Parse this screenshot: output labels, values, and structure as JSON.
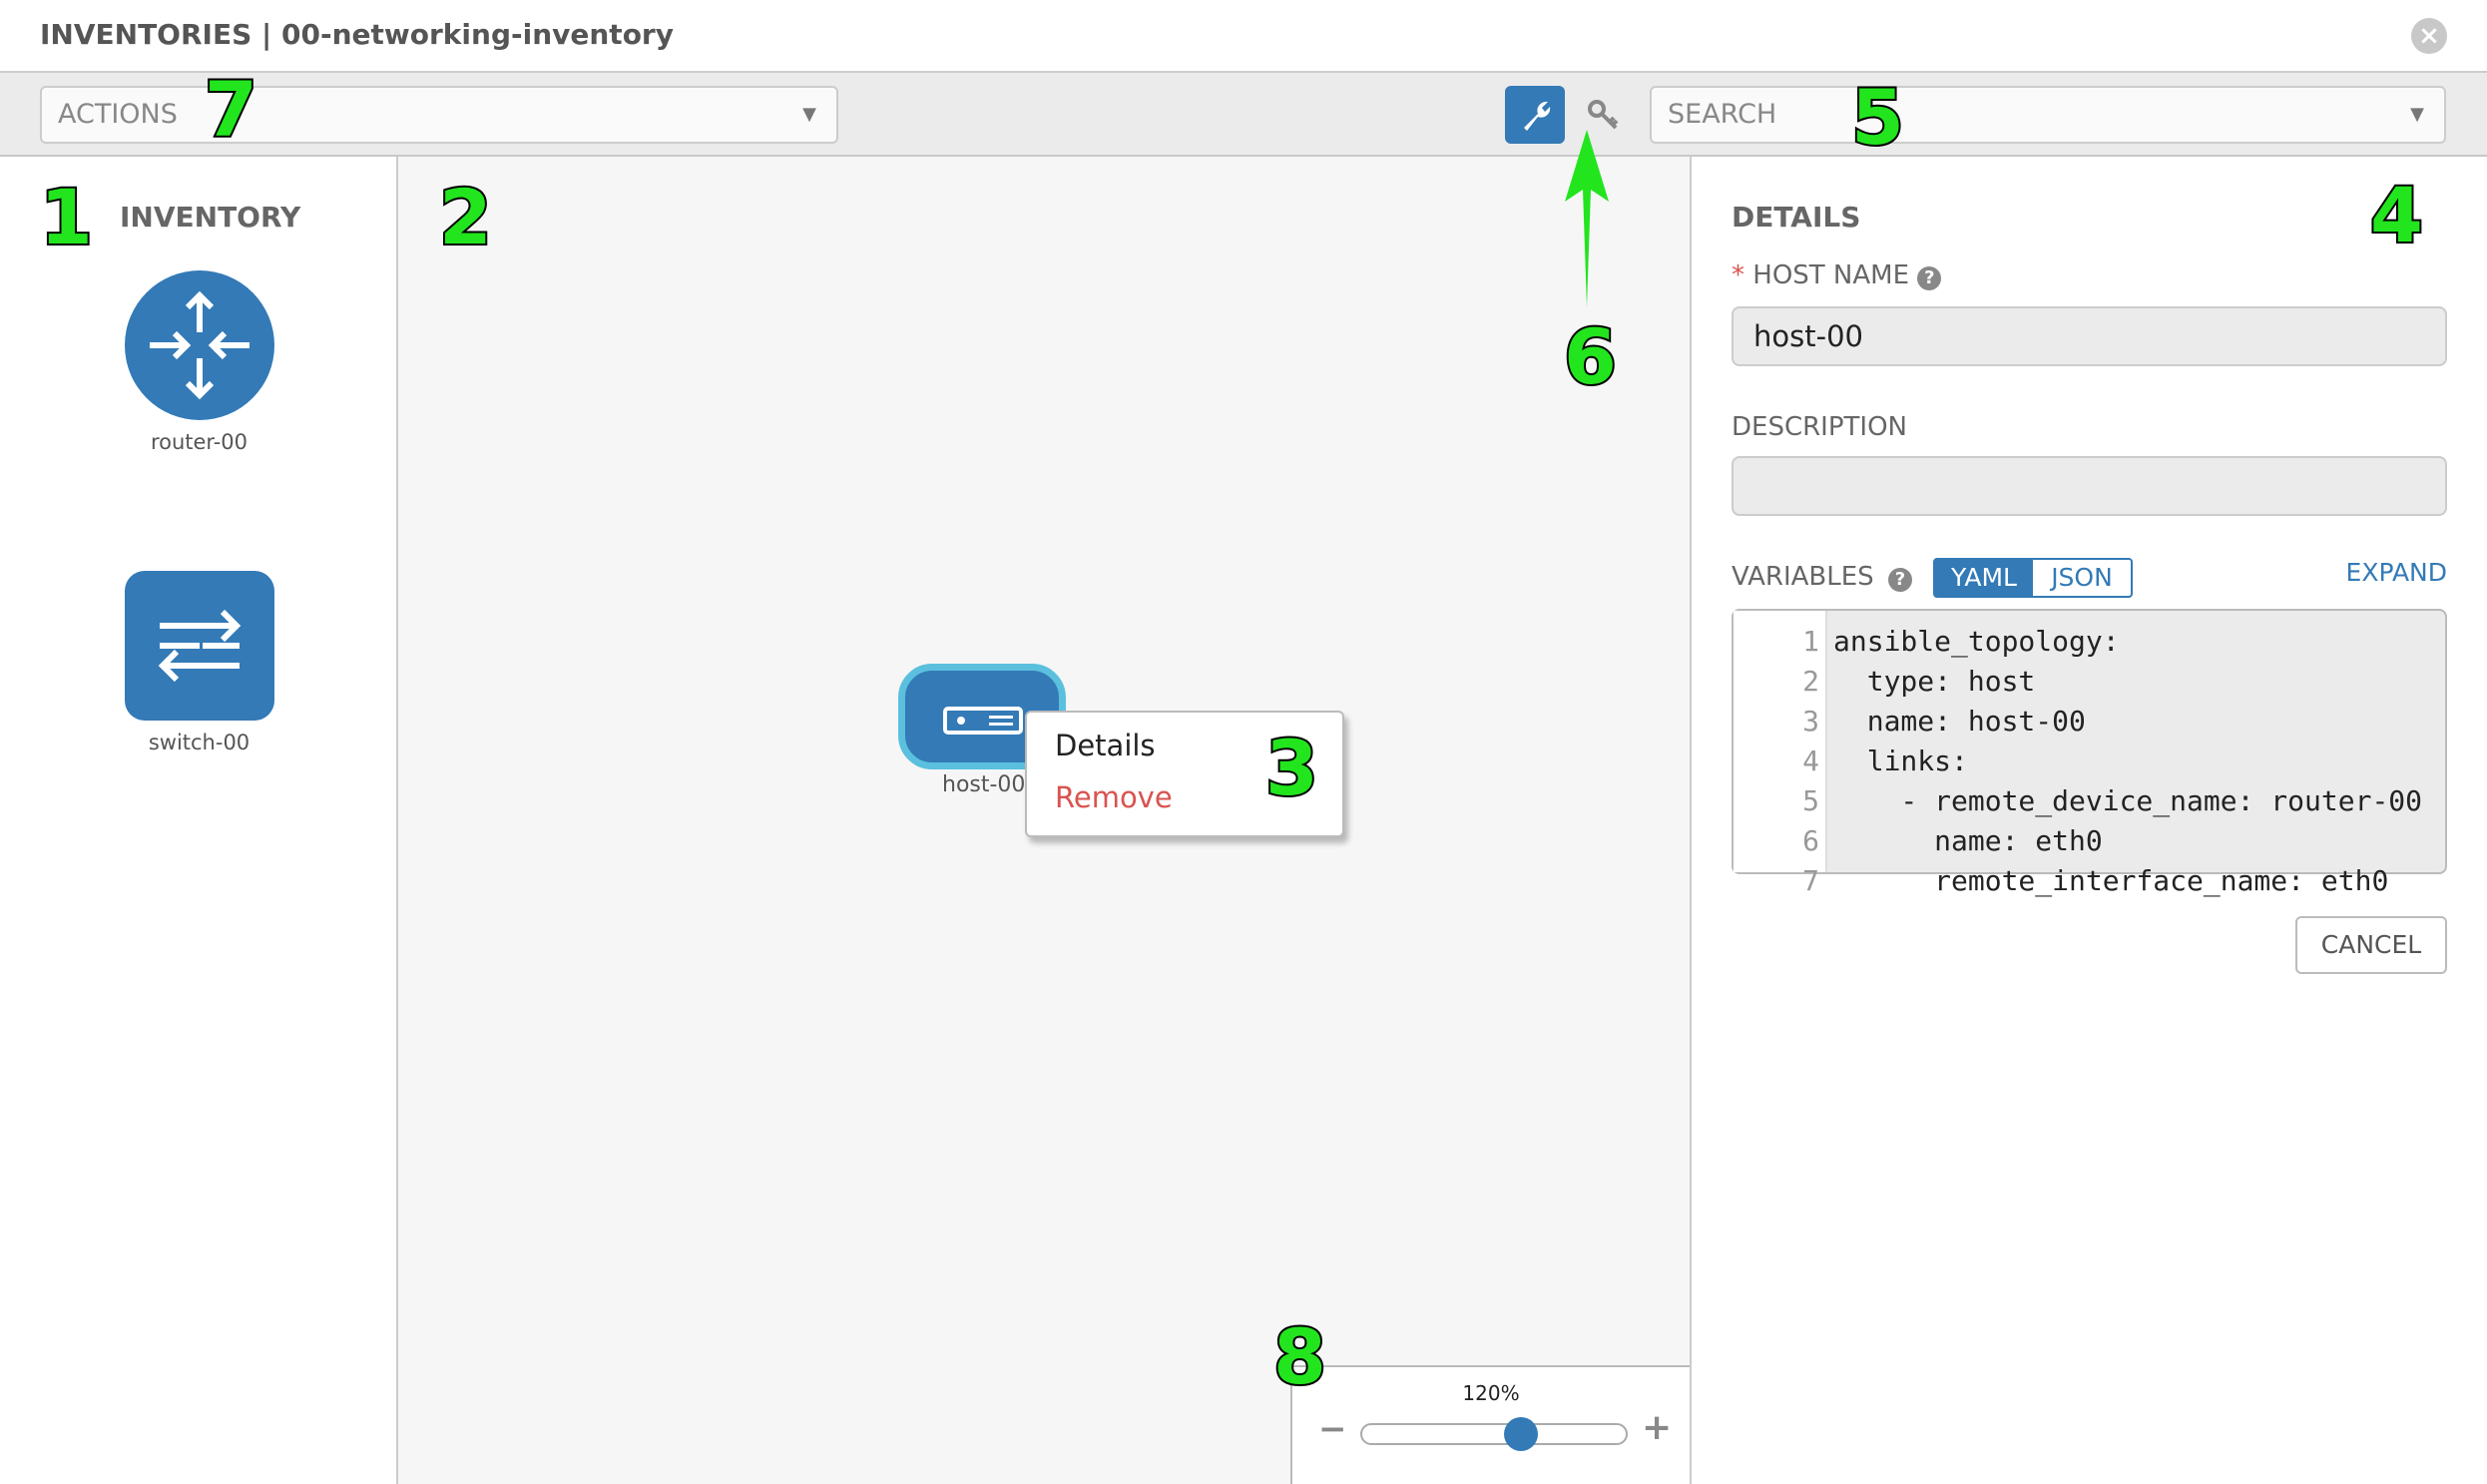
{
  "title": "INVENTORIES | 00-networking-inventory",
  "toolbar": {
    "actions_placeholder": "ACTIONS",
    "search_placeholder": "SEARCH",
    "active_tool": "wrench-icon",
    "secondary_tool": "key-icon"
  },
  "inventory": {
    "heading": "INVENTORY",
    "items": [
      {
        "label": "router-00",
        "icon": "router-icon"
      },
      {
        "label": "switch-00",
        "icon": "switch-icon"
      }
    ]
  },
  "canvas": {
    "node": {
      "label": "host-00",
      "icon": "server-icon"
    },
    "context_menu": {
      "details": "Details",
      "remove": "Remove"
    },
    "zoom": {
      "label": "120%",
      "value_percent": 120,
      "minus": "−",
      "plus": "+"
    }
  },
  "details": {
    "heading": "DETAILS",
    "host_name_label": "HOST NAME",
    "required_mark": "*",
    "host_name_value": "host-00",
    "description_label": "DESCRIPTION",
    "description_value": "",
    "variables_label": "VARIABLES",
    "yaml": "YAML",
    "json": "JSON",
    "expand": "EXPAND",
    "cancel": "CANCEL",
    "code": [
      "ansible_topology:",
      "  type: host",
      "  name: host-00",
      "  links:",
      "    - remote_device_name: router-00",
      "      name: eth0",
      "      remote_interface_name: eth0"
    ]
  },
  "annotations": [
    "1",
    "2",
    "3",
    "4",
    "5",
    "6",
    "7",
    "8"
  ],
  "colors": {
    "primary": "#337ab7",
    "node_border": "#5bc0de",
    "remove": "#d9534f",
    "annotation": "#22e51e"
  }
}
